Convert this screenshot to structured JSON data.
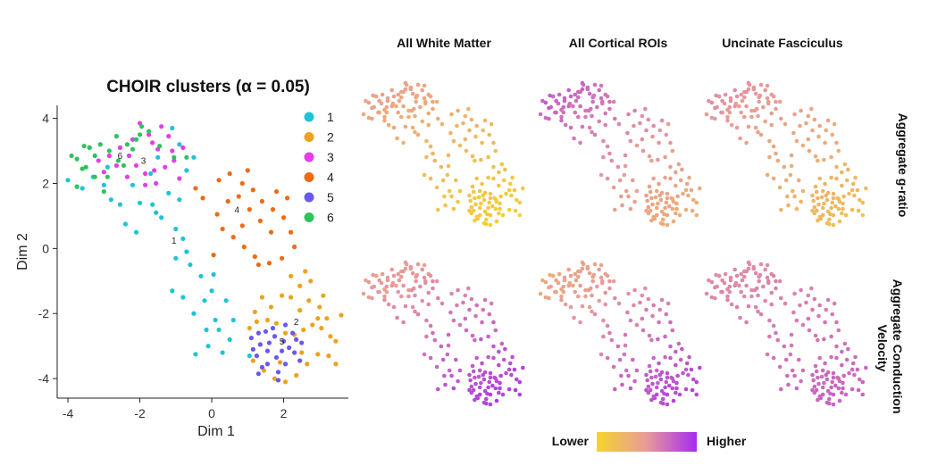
{
  "chart_data": [
    {
      "type": "scatter",
      "title": "CHOIR clusters (α = 0.05)",
      "xlabel": "Dim 1",
      "ylabel": "Dim 2",
      "xlim": [
        -4.3,
        3.8
      ],
      "ylim": [
        -4.6,
        4.4
      ],
      "xticks": [
        -4,
        -2,
        0,
        2
      ],
      "yticks": [
        -4,
        -2,
        0,
        2,
        4
      ],
      "grid": false,
      "legend_position": "top-right",
      "legend": [
        {
          "label": "1",
          "color": "#1fc3d6"
        },
        {
          "label": "2",
          "color": "#eda21d"
        },
        {
          "label": "3",
          "color": "#e33fe6"
        },
        {
          "label": "4",
          "color": "#ef6a11"
        },
        {
          "label": "5",
          "color": "#6a58ee"
        },
        {
          "label": "6",
          "color": "#2ec35c"
        }
      ],
      "cluster_labels": [
        {
          "text": "1",
          "x": -1.05,
          "y": 0.15
        },
        {
          "text": "2",
          "x": 2.35,
          "y": -2.35
        },
        {
          "text": "3",
          "x": -1.9,
          "y": 2.6
        },
        {
          "text": "4",
          "x": 0.7,
          "y": 1.1
        },
        {
          "text": "5",
          "x": 1.95,
          "y": -2.95
        },
        {
          "text": "6",
          "x": -2.55,
          "y": 2.75
        }
      ],
      "clusters": [
        {
          "label": "1",
          "color": "#1fc3d6",
          "points": [
            [
              -4.0,
              2.1
            ],
            [
              -3.6,
              1.85
            ],
            [
              -3.3,
              2.2
            ],
            [
              -3.0,
              1.95
            ],
            [
              -2.8,
              1.5
            ],
            [
              -2.55,
              1.35
            ],
            [
              -2.2,
              1.95
            ],
            [
              -2.0,
              1.4
            ],
            [
              -1.7,
              2.3
            ],
            [
              -1.55,
              1.1
            ],
            [
              -1.4,
              0.95
            ],
            [
              -1.2,
              1.7
            ],
            [
              -0.9,
              1.5
            ],
            [
              -0.7,
              2.4
            ],
            [
              -0.5,
              2.8
            ],
            [
              -0.8,
              0.3
            ],
            [
              -0.7,
              -0.1
            ],
            [
              -1.0,
              -0.3
            ],
            [
              -0.6,
              -0.5
            ],
            [
              -0.3,
              -0.85
            ],
            [
              0.0,
              -1.3
            ],
            [
              -0.2,
              -1.6
            ],
            [
              0.1,
              -2.2
            ],
            [
              -0.5,
              -2.0
            ],
            [
              -0.8,
              -1.5
            ],
            [
              -1.1,
              -1.3
            ],
            [
              0.2,
              -2.5
            ],
            [
              -0.1,
              -3.0
            ],
            [
              0.5,
              -2.8
            ],
            [
              -0.45,
              -3.25
            ],
            [
              0.3,
              -3.2
            ],
            [
              0.6,
              -2.2
            ],
            [
              0.4,
              -1.6
            ],
            [
              -1.1,
              3.7
            ],
            [
              -0.9,
              3.2
            ],
            [
              -2.9,
              2.5
            ],
            [
              -1.65,
              1.35
            ],
            [
              -2.1,
              0.5
            ],
            [
              -2.4,
              0.75
            ],
            [
              -1.0,
              0.6
            ],
            [
              -0.15,
              -2.5
            ],
            [
              1.05,
              -3.3
            ],
            [
              0.05,
              -0.8
            ],
            [
              -1.5,
              2.8
            ],
            [
              -3.4,
              3.1
            ]
          ]
        },
        {
          "label": "2",
          "color": "#eda21d",
          "points": [
            [
              1.4,
              -1.5
            ],
            [
              1.65,
              -1.8
            ],
            [
              1.95,
              -1.45
            ],
            [
              2.2,
              -1.5
            ],
            [
              2.45,
              -1.9
            ],
            [
              2.7,
              -1.6
            ],
            [
              3.0,
              -1.8
            ],
            [
              3.2,
              -2.15
            ],
            [
              3.3,
              -2.7
            ],
            [
              3.45,
              -2.85
            ],
            [
              3.05,
              -2.45
            ],
            [
              2.8,
              -2.35
            ],
            [
              2.55,
              -2.5
            ],
            [
              2.3,
              -2.65
            ],
            [
              2.05,
              -2.6
            ],
            [
              1.8,
              -2.3
            ],
            [
              1.55,
              -2.2
            ],
            [
              1.25,
              -2.25
            ],
            [
              1.05,
              -2.45
            ],
            [
              1.15,
              -3.45
            ],
            [
              1.45,
              -3.75
            ],
            [
              1.75,
              -4.0
            ],
            [
              2.05,
              -4.1
            ],
            [
              2.35,
              -3.9
            ],
            [
              2.65,
              -3.55
            ],
            [
              2.95,
              -3.25
            ],
            [
              3.25,
              -3.3
            ],
            [
              3.45,
              -3.55
            ],
            [
              2.45,
              -1.15
            ],
            [
              2.75,
              -1.0
            ],
            [
              3.1,
              -1.45
            ],
            [
              2.2,
              -0.85
            ],
            [
              2.6,
              -0.7
            ],
            [
              1.9,
              -3.5
            ],
            [
              2.5,
              -3.2
            ],
            [
              2.95,
              -2.15
            ],
            [
              1.2,
              -1.95
            ],
            [
              3.6,
              -2.05
            ]
          ]
        },
        {
          "label": "3",
          "color": "#e33fe6",
          "points": [
            [
              -3.15,
              2.7
            ],
            [
              -2.85,
              2.85
            ],
            [
              -2.55,
              3.1
            ],
            [
              -2.3,
              2.85
            ],
            [
              -2.1,
              2.55
            ],
            [
              -1.85,
              2.3
            ],
            [
              -1.6,
              2.4
            ],
            [
              -1.3,
              2.5
            ],
            [
              -1.05,
              2.7
            ],
            [
              -0.8,
              3.1
            ],
            [
              -1.2,
              3.45
            ],
            [
              -1.5,
              3.05
            ],
            [
              -1.75,
              3.5
            ],
            [
              -2.0,
              3.85
            ],
            [
              -1.4,
              3.75
            ],
            [
              -1.1,
              3.0
            ],
            [
              -1.85,
              1.95
            ],
            [
              -2.35,
              2.2
            ],
            [
              -2.65,
              2.55
            ],
            [
              -3.0,
              2.35
            ],
            [
              -1.55,
              2.0
            ],
            [
              -0.9,
              2.15
            ],
            [
              -2.2,
              3.35
            ],
            [
              -1.65,
              3.25
            ]
          ]
        },
        {
          "label": "4",
          "color": "#ef6a11",
          "points": [
            [
              -0.45,
              1.85
            ],
            [
              0.2,
              2.1
            ],
            [
              0.5,
              2.3
            ],
            [
              0.85,
              2.0
            ],
            [
              1.15,
              1.8
            ],
            [
              1.4,
              1.45
            ],
            [
              1.7,
              1.2
            ],
            [
              2.0,
              0.95
            ],
            [
              2.2,
              0.5
            ],
            [
              2.3,
              0.05
            ],
            [
              1.95,
              -0.3
            ],
            [
              1.6,
              -0.45
            ],
            [
              1.2,
              -0.25
            ],
            [
              0.9,
              0.05
            ],
            [
              0.6,
              0.35
            ],
            [
              0.3,
              0.6
            ],
            [
              0.15,
              1.05
            ],
            [
              0.45,
              1.45
            ],
            [
              0.75,
              1.6
            ],
            [
              1.05,
              1.2
            ],
            [
              1.35,
              0.85
            ],
            [
              1.65,
              0.5
            ],
            [
              0.05,
              -0.2
            ],
            [
              1.0,
              2.4
            ],
            [
              1.8,
              1.75
            ],
            [
              2.1,
              1.55
            ],
            [
              -0.25,
              1.55
            ],
            [
              0.85,
              0.7
            ],
            [
              1.3,
              -0.5
            ]
          ]
        },
        {
          "label": "5",
          "color": "#6a58ee",
          "points": [
            [
              1.1,
              -2.75
            ],
            [
              1.35,
              -2.95
            ],
            [
              1.55,
              -3.15
            ],
            [
              1.8,
              -3.35
            ],
            [
              2.05,
              -3.55
            ],
            [
              2.3,
              -3.2
            ],
            [
              2.5,
              -2.9
            ],
            [
              2.25,
              -2.6
            ],
            [
              2.0,
              -2.85
            ],
            [
              1.75,
              -2.7
            ],
            [
              1.5,
              -2.55
            ],
            [
              1.25,
              -3.3
            ],
            [
              1.55,
              -3.55
            ],
            [
              1.85,
              -3.8
            ],
            [
              1.3,
              -3.85
            ],
            [
              2.15,
              -3.05
            ],
            [
              2.45,
              -3.45
            ],
            [
              1.95,
              -3.15
            ],
            [
              1.6,
              -2.9
            ],
            [
              1.15,
              -3.1
            ],
            [
              1.7,
              -2.45
            ],
            [
              2.35,
              -2.8
            ],
            [
              1.4,
              -3.65
            ],
            [
              2.05,
              -2.35
            ],
            [
              1.3,
              -2.6
            ],
            [
              1.85,
              -4.05
            ]
          ]
        },
        {
          "label": "6",
          "color": "#2ec35c",
          "points": [
            [
              -3.75,
              2.75
            ],
            [
              -3.5,
              2.5
            ],
            [
              -3.25,
              2.2
            ],
            [
              -3.4,
              3.1
            ],
            [
              -3.1,
              3.2
            ],
            [
              -2.85,
              3.0
            ],
            [
              -2.6,
              2.7
            ],
            [
              -2.35,
              3.2
            ],
            [
              -2.1,
              3.35
            ],
            [
              -1.95,
              3.75
            ],
            [
              -1.75,
              3.6
            ],
            [
              -3.6,
              2.45
            ],
            [
              -3.9,
              2.85
            ],
            [
              -3.0,
              1.75
            ],
            [
              -2.45,
              2.55
            ],
            [
              -2.2,
              3.05
            ],
            [
              -3.25,
              2.85
            ],
            [
              -2.9,
              2.2
            ],
            [
              -3.55,
              3.15
            ],
            [
              -2.65,
              3.45
            ],
            [
              -1.45,
              3.15
            ],
            [
              -1.05,
              2.8
            ],
            [
              -0.7,
              2.8
            ],
            [
              -3.75,
              1.9
            ],
            [
              -2.0,
              3.5
            ]
          ]
        }
      ]
    },
    {
      "type": "scatter",
      "panel_grid": "2x3 small multiples on the same embedding",
      "column_titles": [
        "All White Matter",
        "All Cortical ROIs",
        "Uncinate Fasciculus"
      ],
      "row_titles": [
        "Aggregate g-ratio",
        "Aggregate Conduction Velocity"
      ],
      "color_scale": {
        "low_label": "Lower",
        "high_label": "Higher",
        "low_color": "#f5d52b",
        "mid_color": "#e89a9a",
        "high_color": "#a42bf0"
      },
      "panels": [
        {
          "row": 0,
          "col": 0,
          "value_range": [
            0.0,
            0.5
          ],
          "weight_x": 0.35,
          "weight_y": 0.65,
          "offset": 0.1
        },
        {
          "row": 0,
          "col": 1,
          "value_range": [
            0.3,
            0.85
          ],
          "weight_x": 0.45,
          "weight_y": 0.55,
          "offset": 0.15
        },
        {
          "row": 0,
          "col": 2,
          "value_range": [
            0.15,
            0.6
          ],
          "weight_x": 0.4,
          "weight_y": 0.6,
          "offset": 0.1
        },
        {
          "row": 1,
          "col": 0,
          "value_range": [
            0.35,
            0.95
          ],
          "weight_x": 0.4,
          "weight_y": 0.6,
          "offset": 0.05
        },
        {
          "row": 1,
          "col": 1,
          "value_range": [
            0.3,
            0.95
          ],
          "weight_x": 0.45,
          "weight_y": 0.55,
          "offset": 0.1
        },
        {
          "row": 1,
          "col": 2,
          "value_range": [
            0.5,
            0.75
          ],
          "weight_x": 0.3,
          "weight_y": 0.7,
          "offset": 0.0
        }
      ]
    }
  ]
}
